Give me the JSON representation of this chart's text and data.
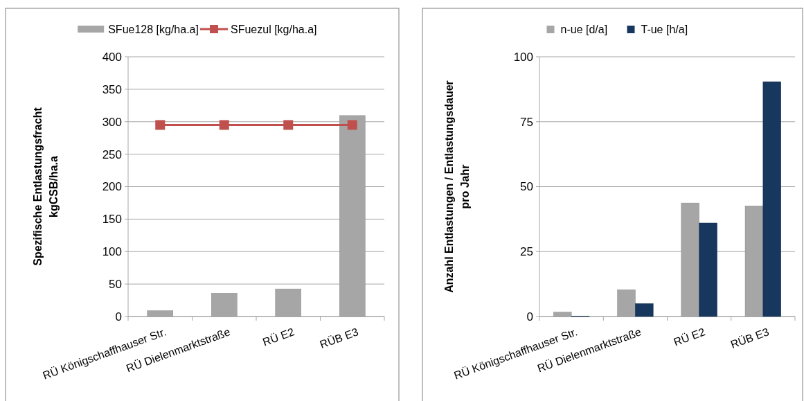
{
  "chart_data": [
    {
      "type": "bar",
      "categories": [
        "RÜ Königschaffhauser Str.",
        "RÜ Dielenmarktstraße",
        "RÜ E2",
        "RÜB E3"
      ],
      "ylabel": "Spezifische Entlastungsfracht\nkgCSB/ha.a",
      "ylim": [
        0,
        400
      ],
      "yticks": [
        0,
        50,
        100,
        150,
        200,
        250,
        300,
        350,
        400
      ],
      "grid": "y",
      "legend": "top",
      "marker": "square",
      "series": [
        {
          "name": "SFue128  [kg/ha.a]",
          "color": "#a6a6a6",
          "values": [
            9,
            36,
            42.5,
            309.5
          ]
        },
        {
          "name": "SFuezul  [kg/ha.a]",
          "type": "line",
          "color": "#c0504d",
          "values": [
            295,
            295,
            295,
            295
          ]
        }
      ]
    },
    {
      "type": "bar",
      "categories": [
        "RÜ Königschaffhauser Str.",
        "RÜ Dielenmarktstraße",
        "RÜ E2",
        "RÜB E3"
      ],
      "ylabel": "Anzahl Entlastungen / Entlastungsdauer\npro Jahr",
      "ylim": [
        0,
        100
      ],
      "yticks": [
        0,
        25,
        50,
        75,
        100
      ],
      "grid": "y",
      "legend": "top",
      "series": [
        {
          "name": "n-ue [d/a]",
          "color": "#a6a6a6",
          "values": [
            1.7,
            10.3,
            43.7,
            42.6
          ]
        },
        {
          "name": "T-ue [h/a]",
          "color": "#17375e",
          "values": [
            0.2,
            5,
            36,
            90.4
          ]
        }
      ]
    }
  ]
}
